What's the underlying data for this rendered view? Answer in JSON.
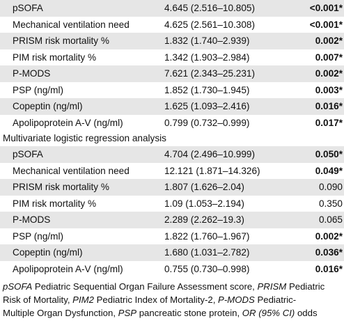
{
  "univariate_rows": [
    {
      "variable": "pSOFA",
      "or_ci": "4.645 (2.516–10.805)",
      "p": "<0.001*",
      "significant": true
    },
    {
      "variable": "Mechanical ventilation need",
      "or_ci": "4.625 (2.561–10.308)",
      "p": "<0.001*",
      "significant": true
    },
    {
      "variable": "PRISM risk mortality %",
      "or_ci": "1.832 (1.740–2.939)",
      "p": "0.002*",
      "significant": true
    },
    {
      "variable": "PIM risk mortality %",
      "or_ci": "1.342 (1.903–2.984)",
      "p": "0.007*",
      "significant": true
    },
    {
      "variable": "P-MODS",
      "or_ci": "7.621 (2.343–25.231)",
      "p": "0.002*",
      "significant": true
    },
    {
      "variable": "PSP (ng/ml)",
      "or_ci": "1.852 (1.730–1.945)",
      "p": "0.003*",
      "significant": true
    },
    {
      "variable": "Copeptin (ng/ml)",
      "or_ci": "1.625 (1.093–2.416)",
      "p": "0.016*",
      "significant": true
    },
    {
      "variable": "Apolipoprotein A-V (ng/ml)",
      "or_ci": "0.799 (0.732–0.999)",
      "p": "0.017*",
      "significant": true
    }
  ],
  "multivariate_header": "Multivariate logistic regression analysis",
  "multivariate_rows": [
    {
      "variable": "pSOFA",
      "or_ci": "4.704 (2.496–10.999)",
      "p": "0.050*",
      "significant": true
    },
    {
      "variable": "Mechanical ventilation need",
      "or_ci": "12.121 (1.871–14.326)",
      "p": "0.049*",
      "significant": true
    },
    {
      "variable": "PRISM risk mortality %",
      "or_ci": "1.807 (1.626–2.04)",
      "p": "0.090",
      "significant": false
    },
    {
      "variable": "PIM risk mortality %",
      "or_ci": "1.09 (1.053–2.194)",
      "p": "0.350",
      "significant": false
    },
    {
      "variable": "P-MODS",
      "or_ci": "2.289 (2.262–19.3)",
      "p": "0.065",
      "significant": false
    },
    {
      "variable": "PSP (ng/ml)",
      "or_ci": "1.822 (1.760–1.967)",
      "p": "0.002*",
      "significant": true
    },
    {
      "variable": "Copeptin (ng/ml)",
      "or_ci": "1.680 (1.031–2.782)",
      "p": "0.036*",
      "significant": true
    },
    {
      "variable": "Apolipoprotein A-V (ng/ml)",
      "or_ci": "0.755 (0.730–0.998)",
      "p": "0.016*",
      "significant": true
    }
  ],
  "footnote": {
    "l1_a": "pSOFA",
    "l1_b": " Pediatric Sequential Organ Failure Assessment score, ",
    "l1_c": "PRISM",
    "l1_d": " Pediatric",
    "l2_a": "Risk of Mortality, ",
    "l2_b": "PIM2",
    "l2_c": " Pediatric Index of Mortality-2, ",
    "l2_d": "P-MODS",
    "l2_e": " Pediatric-",
    "l3_a": "Multiple Organ Dysfunction, ",
    "l3_b": "PSP",
    "l3_c": " pancreatic stone protein, ",
    "l3_d": "OR (95% CI)",
    "l3_e": " odds"
  }
}
